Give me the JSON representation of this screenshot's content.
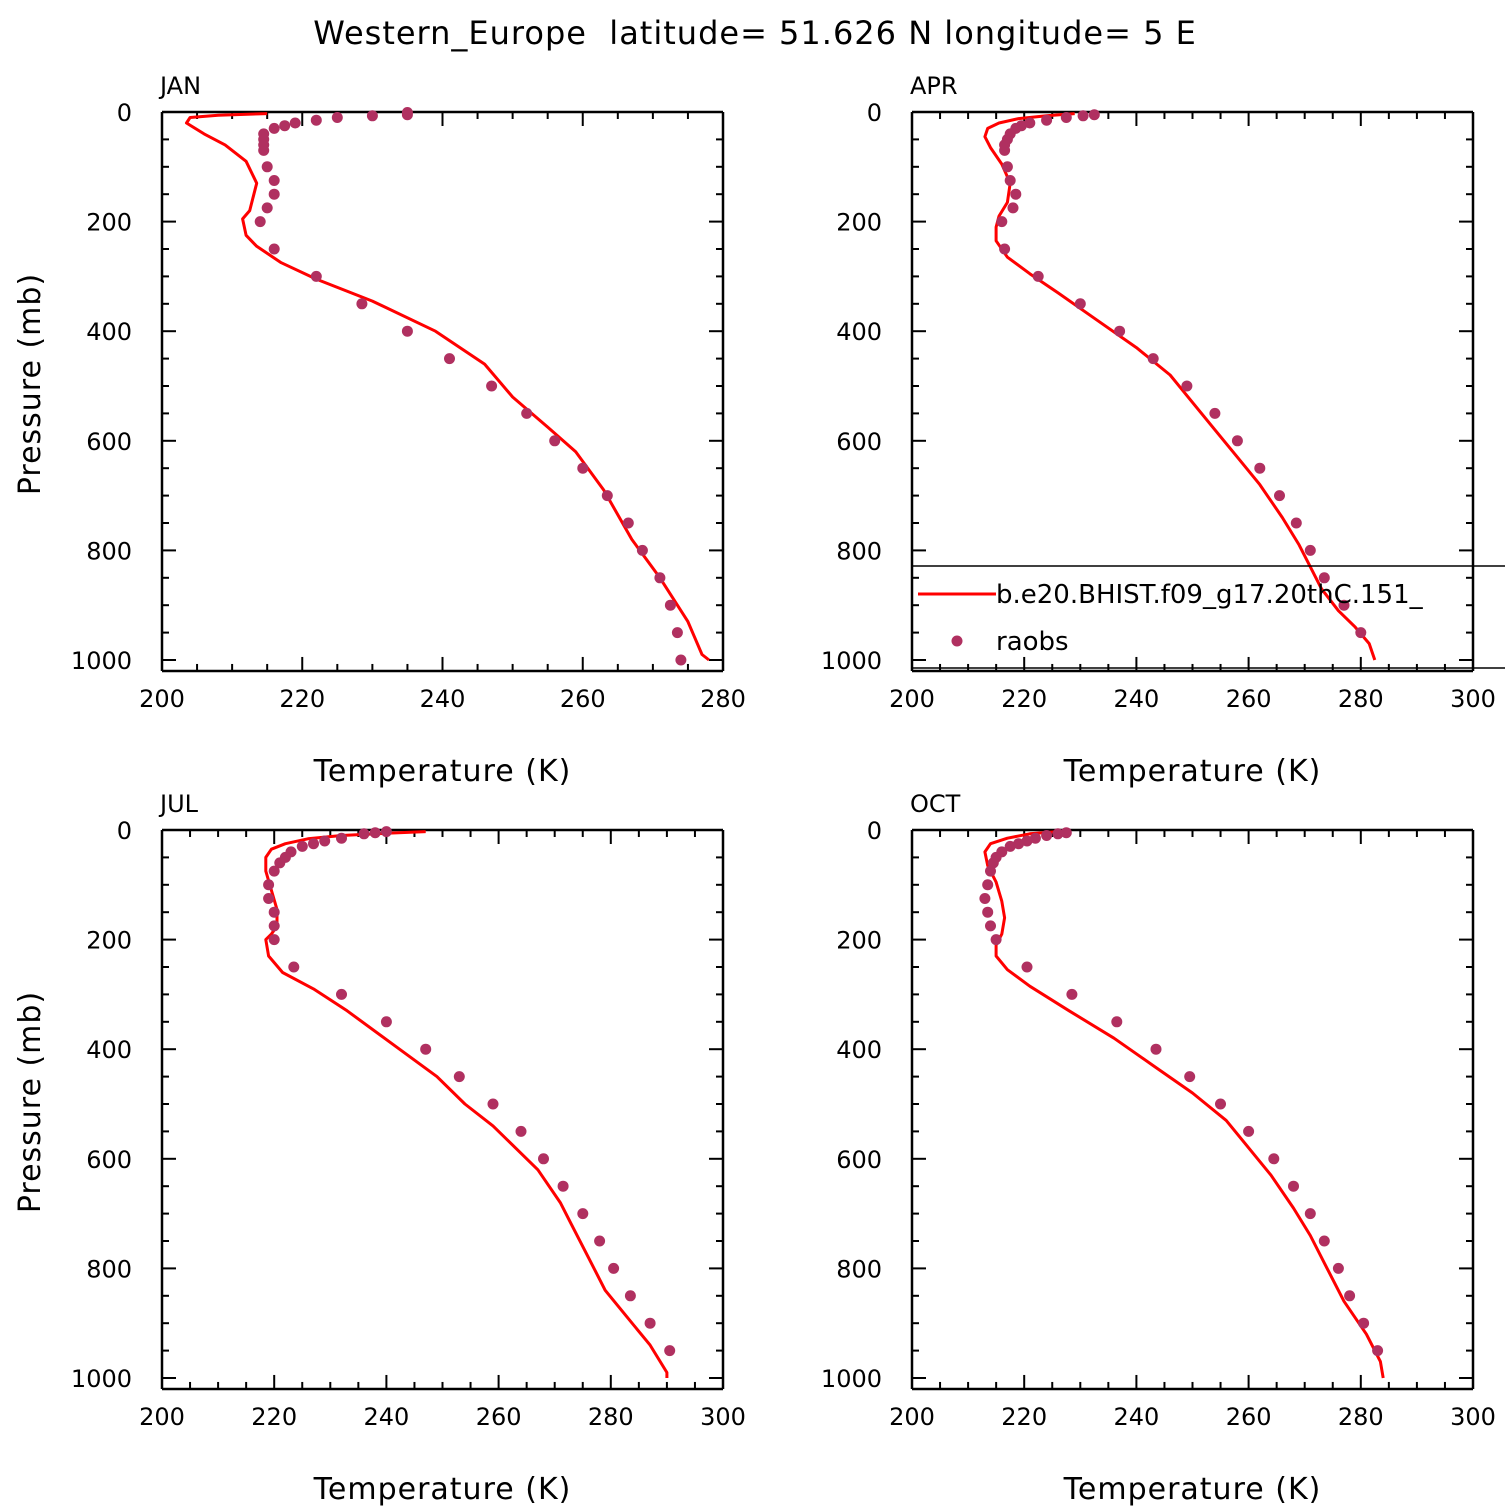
{
  "figure": {
    "suptitle": "Western_Europe  latitude= 51.626 N longitude= 5 E"
  },
  "colors": {
    "model_line": "#ff0000",
    "raobs_marker": "#b03060",
    "axes": "#000000",
    "background": "#ffffff"
  },
  "legend": {
    "entries": [
      {
        "label": "b.e20.BHIST.f09_g17.20thC.151_",
        "style": "line",
        "color": "#ff0000"
      },
      {
        "label": "raobs",
        "style": "marker",
        "color": "#b03060"
      }
    ],
    "placement": "lower-right of APR panel (clipped at right edge)"
  },
  "chart_data": [
    {
      "type": "line",
      "panel_title": "JAN",
      "xlabel": "Temperature (K)",
      "ylabel": "Pressure (mb)",
      "xlim": [
        200,
        280
      ],
      "ylim": [
        1020,
        0
      ],
      "y_inverted": true,
      "xticks": [
        "200",
        "220",
        "240",
        "260",
        "280"
      ],
      "yticks": [
        "0",
        "200",
        "400",
        "600",
        "800",
        "1000"
      ],
      "grid": false,
      "series": [
        {
          "name": "b.e20.BHIST.f09_g17.20thC.151_",
          "style": "line",
          "points": [
            [
              215,
              3
            ],
            [
              208,
              6
            ],
            [
              204,
              10
            ],
            [
              203.5,
              20
            ],
            [
              206,
              40
            ],
            [
              209,
              60
            ],
            [
              212,
              90
            ],
            [
              213.5,
              130
            ],
            [
              212.5,
              180
            ],
            [
              211.5,
              195
            ],
            [
              212,
              225
            ],
            [
              213.5,
              245
            ],
            [
              217,
              275
            ],
            [
              222,
              305
            ],
            [
              230,
              345
            ],
            [
              239,
              400
            ],
            [
              246,
              460
            ],
            [
              250,
              520
            ],
            [
              255,
              575
            ],
            [
              259,
              620
            ],
            [
              263,
              690
            ],
            [
              267,
              780
            ],
            [
              271,
              850
            ],
            [
              275,
              930
            ],
            [
              277,
              990
            ],
            [
              278,
              1000
            ]
          ]
        },
        {
          "name": "raobs",
          "style": "marker",
          "points": [
            [
              235,
              1
            ],
            [
              235,
              5
            ],
            [
              230,
              7
            ],
            [
              225,
              10
            ],
            [
              222,
              15
            ],
            [
              219,
              20
            ],
            [
              217.5,
              25
            ],
            [
              216,
              30
            ],
            [
              214.5,
              40
            ],
            [
              214.5,
              50
            ],
            [
              214.5,
              60
            ],
            [
              214.5,
              70
            ],
            [
              215,
              100
            ],
            [
              216,
              125
            ],
            [
              216,
              150
            ],
            [
              215,
              175
            ],
            [
              214,
              200
            ],
            [
              216,
              250
            ],
            [
              222,
              300
            ],
            [
              228.5,
              350
            ],
            [
              235,
              400
            ],
            [
              241,
              450
            ],
            [
              247,
              500
            ],
            [
              252,
              550
            ],
            [
              256,
              600
            ],
            [
              260,
              650
            ],
            [
              263.5,
              700
            ],
            [
              266.5,
              750
            ],
            [
              268.5,
              800
            ],
            [
              271,
              850
            ],
            [
              272.5,
              900
            ],
            [
              273.5,
              950
            ],
            [
              274,
              1000
            ]
          ]
        }
      ]
    },
    {
      "type": "line",
      "panel_title": "APR",
      "xlabel": "Temperature (K)",
      "ylabel": "",
      "xlim": [
        200,
        300
      ],
      "ylim": [
        1020,
        0
      ],
      "y_inverted": true,
      "xticks": [
        "200",
        "220",
        "240",
        "260",
        "280",
        "300"
      ],
      "yticks": [
        "0",
        "200",
        "400",
        "600",
        "800",
        "1000"
      ],
      "grid": false,
      "series": [
        {
          "name": "b.e20.BHIST.f09_g17.20thC.151_",
          "style": "line",
          "points": [
            [
              229,
              3
            ],
            [
              224,
              7
            ],
            [
              219,
              12
            ],
            [
              215.5,
              20
            ],
            [
              213.5,
              30
            ],
            [
              213,
              45
            ],
            [
              214,
              65
            ],
            [
              216,
              95
            ],
            [
              217.5,
              130
            ],
            [
              217,
              165
            ],
            [
              215.5,
              190
            ],
            [
              215,
              210
            ],
            [
              215,
              235
            ],
            [
              217,
              265
            ],
            [
              221,
              295
            ],
            [
              226,
              330
            ],
            [
              233,
              380
            ],
            [
              240,
              430
            ],
            [
              246,
              480
            ],
            [
              250,
              530
            ],
            [
              254,
              580
            ],
            [
              258,
              630
            ],
            [
              262,
              680
            ],
            [
              266,
              740
            ],
            [
              269,
              790
            ],
            [
              271,
              830
            ],
            [
              273,
              870
            ],
            [
              276,
              910
            ],
            [
              279,
              940
            ],
            [
              281.5,
              970
            ],
            [
              282.5,
              1000
            ]
          ]
        },
        {
          "name": "raobs",
          "style": "marker",
          "points": [
            [
              232.5,
              5
            ],
            [
              230.5,
              7
            ],
            [
              227.5,
              10
            ],
            [
              224,
              15
            ],
            [
              221,
              20
            ],
            [
              219.5,
              25
            ],
            [
              218.5,
              30
            ],
            [
              217.5,
              40
            ],
            [
              217,
              50
            ],
            [
              216.5,
              60
            ],
            [
              216.5,
              70
            ],
            [
              217,
              100
            ],
            [
              217.5,
              125
            ],
            [
              218.5,
              150
            ],
            [
              218,
              175
            ],
            [
              216,
              200
            ],
            [
              216.5,
              250
            ],
            [
              222.5,
              300
            ],
            [
              230,
              350
            ],
            [
              237,
              400
            ],
            [
              243,
              450
            ],
            [
              249,
              500
            ],
            [
              254,
              550
            ],
            [
              258,
              600
            ],
            [
              262,
              650
            ],
            [
              265.5,
              700
            ],
            [
              268.5,
              750
            ],
            [
              271,
              800
            ],
            [
              273.5,
              850
            ],
            [
              277,
              900
            ],
            [
              280,
              950
            ]
          ]
        }
      ]
    },
    {
      "type": "line",
      "panel_title": "JUL",
      "xlabel": "Temperature (K)",
      "ylabel": "Pressure (mb)",
      "xlim": [
        200,
        300
      ],
      "ylim": [
        1020,
        0
      ],
      "y_inverted": true,
      "xticks": [
        "200",
        "220",
        "240",
        "260",
        "280",
        "300"
      ],
      "yticks": [
        "0",
        "200",
        "400",
        "600",
        "800",
        "1000"
      ],
      "grid": false,
      "series": [
        {
          "name": "b.e20.BHIST.f09_g17.20thC.151_",
          "style": "line",
          "points": [
            [
              247,
              3
            ],
            [
              240,
              6
            ],
            [
              232,
              10
            ],
            [
              226,
              16
            ],
            [
              222,
              25
            ],
            [
              219.5,
              35
            ],
            [
              218.5,
              50
            ],
            [
              218.5,
              75
            ],
            [
              219.5,
              110
            ],
            [
              220.5,
              145
            ],
            [
              220.5,
              175
            ],
            [
              219.5,
              190
            ],
            [
              218.5,
              200
            ],
            [
              219,
              230
            ],
            [
              221.5,
              260
            ],
            [
              227,
              290
            ],
            [
              233,
              330
            ],
            [
              241,
              390
            ],
            [
              249,
              450
            ],
            [
              254,
              500
            ],
            [
              259,
              540
            ],
            [
              263,
              580
            ],
            [
              267,
              620
            ],
            [
              271,
              680
            ],
            [
              273,
              720
            ],
            [
              276,
              780
            ],
            [
              279,
              840
            ],
            [
              283,
              890
            ],
            [
              287,
              940
            ],
            [
              290,
              990
            ],
            [
              290,
              1000
            ]
          ]
        },
        {
          "name": "raobs",
          "style": "marker",
          "points": [
            [
              240,
              3
            ],
            [
              238,
              5
            ],
            [
              236,
              7
            ],
            [
              232,
              15
            ],
            [
              229,
              20
            ],
            [
              227,
              25
            ],
            [
              225,
              30
            ],
            [
              223,
              40
            ],
            [
              222,
              50
            ],
            [
              221,
              60
            ],
            [
              220,
              75
            ],
            [
              219,
              100
            ],
            [
              219,
              125
            ],
            [
              220,
              150
            ],
            [
              220,
              175
            ],
            [
              220,
              200
            ],
            [
              223.5,
              250
            ],
            [
              232,
              300
            ],
            [
              240,
              350
            ],
            [
              247,
              400
            ],
            [
              253,
              450
            ],
            [
              259,
              500
            ],
            [
              264,
              550
            ],
            [
              268,
              600
            ],
            [
              271.5,
              650
            ],
            [
              275,
              700
            ],
            [
              278,
              750
            ],
            [
              280.5,
              800
            ],
            [
              283.5,
              850
            ],
            [
              287,
              900
            ],
            [
              290.5,
              950
            ]
          ]
        }
      ]
    },
    {
      "type": "line",
      "panel_title": "OCT",
      "xlabel": "Temperature (K)",
      "ylabel": "",
      "xlim": [
        200,
        300
      ],
      "ylim": [
        1020,
        0
      ],
      "y_inverted": true,
      "xticks": [
        "200",
        "220",
        "240",
        "260",
        "280",
        "300"
      ],
      "yticks": [
        "0",
        "200",
        "400",
        "600",
        "800",
        "1000"
      ],
      "grid": false,
      "series": [
        {
          "name": "b.e20.BHIST.f09_g17.20thC.151_",
          "style": "line",
          "points": [
            [
              226,
              3
            ],
            [
              221,
              7
            ],
            [
              217,
              15
            ],
            [
              214,
              25
            ],
            [
              213,
              40
            ],
            [
              213.5,
              65
            ],
            [
              215,
              95
            ],
            [
              216,
              130
            ],
            [
              216.5,
              160
            ],
            [
              216,
              190
            ],
            [
              215,
              210
            ],
            [
              215,
              230
            ],
            [
              217,
              255
            ],
            [
              221,
              285
            ],
            [
              228,
              330
            ],
            [
              236,
              380
            ],
            [
              243,
              430
            ],
            [
              250,
              480
            ],
            [
              256,
              530
            ],
            [
              260,
              580
            ],
            [
              264,
              630
            ],
            [
              268,
              690
            ],
            [
              271,
              740
            ],
            [
              274,
              800
            ],
            [
              277,
              860
            ],
            [
              281,
              920
            ],
            [
              283.5,
              970
            ],
            [
              284,
              1000
            ]
          ]
        },
        {
          "name": "raobs",
          "style": "marker",
          "points": [
            [
              227.5,
              5
            ],
            [
              226,
              7
            ],
            [
              224,
              10
            ],
            [
              222,
              15
            ],
            [
              220.5,
              20
            ],
            [
              219,
              25
            ],
            [
              217.5,
              30
            ],
            [
              216,
              40
            ],
            [
              215,
              50
            ],
            [
              214.5,
              60
            ],
            [
              214,
              75
            ],
            [
              213.5,
              100
            ],
            [
              213,
              125
            ],
            [
              213.5,
              150
            ],
            [
              214,
              175
            ],
            [
              215,
              200
            ],
            [
              220.5,
              250
            ],
            [
              228.5,
              300
            ],
            [
              236.5,
              350
            ],
            [
              243.5,
              400
            ],
            [
              249.5,
              450
            ],
            [
              255,
              500
            ],
            [
              260,
              550
            ],
            [
              264.5,
              600
            ],
            [
              268,
              650
            ],
            [
              271,
              700
            ],
            [
              273.5,
              750
            ],
            [
              276,
              800
            ],
            [
              278,
              850
            ],
            [
              280.5,
              900
            ],
            [
              283,
              950
            ]
          ]
        }
      ]
    }
  ]
}
